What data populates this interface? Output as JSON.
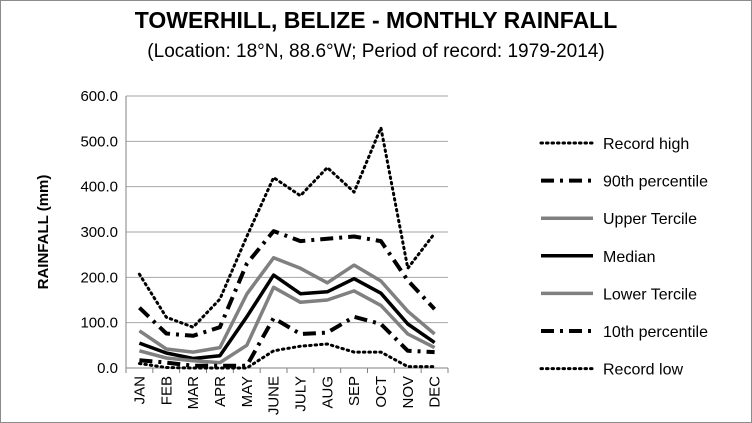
{
  "chart_data": {
    "type": "line",
    "title": "TOWERHILL, BELIZE - MONTHLY RAINFALL",
    "subtitle": "(Location: 18°N, 88.6°W; Period of record: 1979-2014)",
    "xlabel": "",
    "ylabel": "RAINFALL (mm)",
    "ylim": [
      0,
      600
    ],
    "yticks": [
      "0.0",
      "100.0",
      "200.0",
      "300.0",
      "400.0",
      "500.0",
      "600.0"
    ],
    "grid": "horizontal",
    "legend_position": "right",
    "categories": [
      "JAN",
      "FEB",
      "MAR",
      "APR",
      "MAY",
      "JUNE",
      "JULY",
      "AUG",
      "SEP",
      "OCT",
      "NOV",
      "DEC"
    ],
    "series": [
      {
        "name": "Record high",
        "style": "dotted",
        "color": "#000000",
        "values": [
          207,
          112,
          90,
          152,
          290,
          420,
          380,
          442,
          388,
          530,
          220,
          297
        ]
      },
      {
        "name": "90th percentile",
        "style": "dashdot",
        "color": "#000000",
        "values": [
          133,
          76,
          71,
          90,
          230,
          302,
          280,
          285,
          290,
          280,
          193,
          130
        ]
      },
      {
        "name": "Upper Tercile",
        "style": "solid",
        "color": "#808080",
        "values": [
          82,
          42,
          35,
          45,
          163,
          243,
          220,
          188,
          227,
          192,
          125,
          75
        ]
      },
      {
        "name": "Median",
        "style": "solid",
        "color": "#000000",
        "values": [
          55,
          33,
          21,
          27,
          113,
          205,
          164,
          168,
          197,
          165,
          97,
          56
        ]
      },
      {
        "name": "Lower Tercile",
        "style": "solid",
        "color": "#808080",
        "values": [
          38,
          22,
          16,
          12,
          50,
          178,
          145,
          150,
          170,
          138,
          75,
          45
        ]
      },
      {
        "name": "10th percentile",
        "style": "dashdot",
        "color": "#000000",
        "values": [
          17,
          12,
          5,
          5,
          5,
          110,
          75,
          78,
          113,
          97,
          38,
          35
        ]
      },
      {
        "name": "Record low",
        "style": "dotted",
        "color": "#000000",
        "values": [
          10,
          1,
          0,
          0,
          0,
          38,
          48,
          53,
          35,
          35,
          3,
          3
        ]
      }
    ]
  }
}
